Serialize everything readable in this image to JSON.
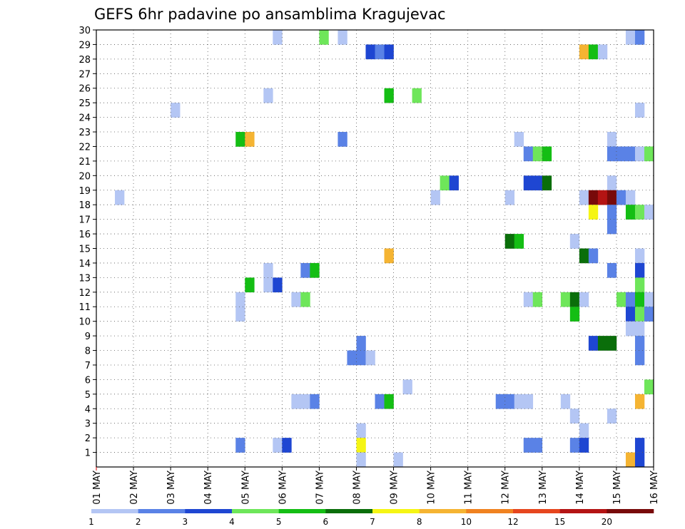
{
  "chart_data": {
    "type": "heatmap",
    "title": "GEFS 6hr padavine po ansamblima Kragujevac",
    "x_start_label": "01 MAY",
    "x_ticks": [
      "01 MAY",
      "02 MAY",
      "03 MAY",
      "04 MAY",
      "05 MAY",
      "06 MAY",
      "07 MAY",
      "08 MAY",
      "09 MAY",
      "10 MAY",
      "11 MAY",
      "12 MAY",
      "13 MAY",
      "14 MAY",
      "15 MAY",
      "16 MAY"
    ],
    "y_ticks": [
      1,
      2,
      3,
      4,
      5,
      6,
      7,
      8,
      9,
      10,
      11,
      12,
      13,
      14,
      15,
      16,
      17,
      18,
      19,
      20,
      21,
      22,
      23,
      24,
      25,
      26,
      27,
      28,
      29,
      30
    ],
    "x_range_days": [
      0,
      15
    ],
    "y_range": [
      0,
      30
    ],
    "grid": true,
    "cell_value_unit": "6-hour step index (0-60) by ensemble member (1-30)",
    "legend": {
      "labels": [
        "1",
        "2",
        "3",
        "4",
        "5",
        "6",
        "7",
        "8",
        "10",
        "12",
        "15",
        "20"
      ],
      "colors": [
        "#b4c6f4",
        "#5a82e6",
        "#1e46d2",
        "#6ee65a",
        "#14be14",
        "#0a6e0a",
        "#f5f514",
        "#f5b432",
        "#f08220",
        "#e6461e",
        "#b41414",
        "#780a0a"
      ]
    },
    "cells": [
      {
        "m": 29,
        "s": [
          19
        ]
      },
      {
        "m": 29,
        "s": [
          24
        ],
        "c": 3
      },
      {
        "m": 29,
        "s": [
          26
        ]
      },
      {
        "m": 29,
        "s": [
          57
        ]
      },
      {
        "m": 29,
        "s": [
          58
        ],
        "c": 1
      },
      {
        "m": 28,
        "s": [
          29
        ],
        "c": 2
      },
      {
        "m": 28,
        "s": [
          30
        ],
        "c": 1
      },
      {
        "m": 28,
        "s": [
          31
        ],
        "c": 2
      },
      {
        "m": 28,
        "s": [
          52
        ],
        "c": 7
      },
      {
        "m": 28,
        "s": [
          53
        ],
        "c": 4
      },
      {
        "m": 28,
        "s": [
          54
        ]
      },
      {
        "m": 25,
        "s": [
          18
        ]
      },
      {
        "m": 25,
        "s": [
          31
        ],
        "c": 4
      },
      {
        "m": 25,
        "s": [
          34
        ],
        "c": 3
      },
      {
        "m": 24,
        "s": [
          8
        ]
      },
      {
        "m": 24,
        "s": [
          58
        ]
      },
      {
        "m": 22,
        "s": [
          15
        ],
        "c": 4
      },
      {
        "m": 22,
        "s": [
          16
        ],
        "c": 7
      },
      {
        "m": 22,
        "s": [
          26
        ],
        "c": 1
      },
      {
        "m": 22,
        "s": [
          45
        ]
      },
      {
        "m": 22,
        "s": [
          55
        ]
      },
      {
        "m": 21,
        "s": [
          46
        ],
        "c": 1
      },
      {
        "m": 21,
        "s": [
          47
        ],
        "c": 3
      },
      {
        "m": 21,
        "s": [
          48
        ],
        "c": 4
      },
      {
        "m": 21,
        "s": [
          55
        ],
        "c": 1
      },
      {
        "m": 21,
        "s": [
          56
        ],
        "c": 1
      },
      {
        "m": 21,
        "s": [
          57
        ],
        "c": 1
      },
      {
        "m": 21,
        "s": [
          58
        ]
      },
      {
        "m": 21,
        "s": [
          59
        ],
        "c": 3
      },
      {
        "m": 19,
        "s": [
          37
        ],
        "c": 3
      },
      {
        "m": 19,
        "s": [
          38
        ],
        "c": 2
      },
      {
        "m": 19,
        "s": [
          46
        ],
        "c": 2
      },
      {
        "m": 19,
        "s": [
          47
        ],
        "c": 2
      },
      {
        "m": 19,
        "s": [
          48
        ],
        "c": 5
      },
      {
        "m": 19,
        "s": [
          55
        ]
      },
      {
        "m": 18,
        "s": [
          2
        ]
      },
      {
        "m": 18,
        "s": [
          36
        ]
      },
      {
        "m": 18,
        "s": [
          44
        ]
      },
      {
        "m": 18,
        "s": [
          52
        ]
      },
      {
        "m": 18,
        "s": [
          53
        ],
        "c": 11
      },
      {
        "m": 18,
        "s": [
          54
        ],
        "c": 10
      },
      {
        "m": 18,
        "s": [
          55
        ],
        "c": 11
      },
      {
        "m": 18,
        "s": [
          56
        ],
        "c": 1
      },
      {
        "m": 18,
        "s": [
          57
        ]
      },
      {
        "m": 17,
        "s": [
          53
        ],
        "c": 6
      },
      {
        "m": 17,
        "s": [
          55
        ],
        "c": 1
      },
      {
        "m": 17,
        "s": [
          57
        ],
        "c": 4
      },
      {
        "m": 17,
        "s": [
          58
        ],
        "c": 3
      },
      {
        "m": 17,
        "s": [
          59
        ]
      },
      {
        "m": 16,
        "s": [
          55
        ],
        "c": 1
      },
      {
        "m": 15,
        "s": [
          44
        ],
        "c": 5
      },
      {
        "m": 15,
        "s": [
          45
        ],
        "c": 4
      },
      {
        "m": 15,
        "s": [
          51
        ]
      },
      {
        "m": 14,
        "s": [
          31
        ],
        "c": 7
      },
      {
        "m": 14,
        "s": [
          52
        ],
        "c": 5
      },
      {
        "m": 14,
        "s": [
          53
        ],
        "c": 1
      },
      {
        "m": 14,
        "s": [
          58
        ]
      },
      {
        "m": 13,
        "s": [
          18
        ]
      },
      {
        "m": 13,
        "s": [
          22
        ],
        "c": 1
      },
      {
        "m": 13,
        "s": [
          23
        ],
        "c": 4
      },
      {
        "m": 13,
        "s": [
          55
        ],
        "c": 1
      },
      {
        "m": 13,
        "s": [
          58
        ],
        "c": 2
      },
      {
        "m": 12,
        "s": [
          16
        ],
        "c": 4
      },
      {
        "m": 12,
        "s": [
          18
        ]
      },
      {
        "m": 12,
        "s": [
          19
        ],
        "c": 2
      },
      {
        "m": 12,
        "s": [
          58
        ],
        "c": 3
      },
      {
        "m": 11,
        "s": [
          15
        ]
      },
      {
        "m": 11,
        "s": [
          21
        ]
      },
      {
        "m": 11,
        "s": [
          22
        ],
        "c": 3
      },
      {
        "m": 11,
        "s": [
          46
        ]
      },
      {
        "m": 11,
        "s": [
          47
        ],
        "c": 3
      },
      {
        "m": 11,
        "s": [
          50
        ],
        "c": 3
      },
      {
        "m": 11,
        "s": [
          51
        ],
        "c": 5
      },
      {
        "m": 11,
        "s": [
          52
        ]
      },
      {
        "m": 11,
        "s": [
          56
        ],
        "c": 3
      },
      {
        "m": 11,
        "s": [
          57
        ],
        "c": 1
      },
      {
        "m": 11,
        "s": [
          58
        ],
        "c": 4
      },
      {
        "m": 11,
        "s": [
          59
        ]
      },
      {
        "m": 10,
        "s": [
          15
        ]
      },
      {
        "m": 10,
        "s": [
          51
        ],
        "c": 4
      },
      {
        "m": 10,
        "s": [
          57
        ],
        "c": 2
      },
      {
        "m": 10,
        "s": [
          58
        ],
        "c": 3
      },
      {
        "m": 10,
        "s": [
          59
        ],
        "c": 1
      },
      {
        "m": 9,
        "s": [
          57
        ]
      },
      {
        "m": 9,
        "s": [
          58
        ]
      },
      {
        "m": 8,
        "s": [
          28
        ],
        "c": 1
      },
      {
        "m": 8,
        "s": [
          53
        ],
        "c": 2
      },
      {
        "m": 8,
        "s": [
          54
        ],
        "c": 5
      },
      {
        "m": 8,
        "s": [
          55
        ],
        "c": 5
      },
      {
        "m": 8,
        "s": [
          58
        ],
        "c": 1
      },
      {
        "m": 7,
        "s": [
          27
        ],
        "c": 1
      },
      {
        "m": 7,
        "s": [
          28
        ],
        "c": 1
      },
      {
        "m": 7,
        "s": [
          29
        ]
      },
      {
        "m": 7,
        "s": [
          58
        ],
        "c": 1
      },
      {
        "m": 5,
        "s": [
          33
        ]
      },
      {
        "m": 5,
        "s": [
          59
        ],
        "c": 3
      },
      {
        "m": 4,
        "s": [
          21
        ]
      },
      {
        "m": 4,
        "s": [
          22
        ]
      },
      {
        "m": 4,
        "s": [
          23
        ],
        "c": 1
      },
      {
        "m": 4,
        "s": [
          30
        ],
        "c": 1
      },
      {
        "m": 4,
        "s": [
          31
        ],
        "c": 4
      },
      {
        "m": 4,
        "s": [
          43
        ],
        "c": 1
      },
      {
        "m": 4,
        "s": [
          44
        ],
        "c": 1
      },
      {
        "m": 4,
        "s": [
          45
        ]
      },
      {
        "m": 4,
        "s": [
          46
        ]
      },
      {
        "m": 4,
        "s": [
          50
        ]
      },
      {
        "m": 4,
        "s": [
          58
        ],
        "c": 7
      },
      {
        "m": 3,
        "s": [
          51
        ]
      },
      {
        "m": 3,
        "s": [
          55
        ]
      },
      {
        "m": 2,
        "s": [
          28
        ]
      },
      {
        "m": 2,
        "s": [
          52
        ]
      },
      {
        "m": 1,
        "s": [
          15
        ],
        "c": 1
      },
      {
        "m": 1,
        "s": [
          19
        ]
      },
      {
        "m": 1,
        "s": [
          20
        ],
        "c": 2
      },
      {
        "m": 1,
        "s": [
          28
        ],
        "c": 6
      },
      {
        "m": 1,
        "s": [
          46
        ],
        "c": 1
      },
      {
        "m": 1,
        "s": [
          47
        ],
        "c": 1
      },
      {
        "m": 1,
        "s": [
          51
        ],
        "c": 1
      },
      {
        "m": 1,
        "s": [
          52
        ],
        "c": 2
      },
      {
        "m": 1,
        "s": [
          58
        ],
        "c": 2
      },
      {
        "m": 0,
        "s": [
          28
        ]
      },
      {
        "m": 0,
        "s": [
          32
        ]
      },
      {
        "m": 0,
        "s": [
          57
        ],
        "c": 7
      },
      {
        "m": 0,
        "s": [
          58
        ],
        "c": 2
      }
    ]
  }
}
